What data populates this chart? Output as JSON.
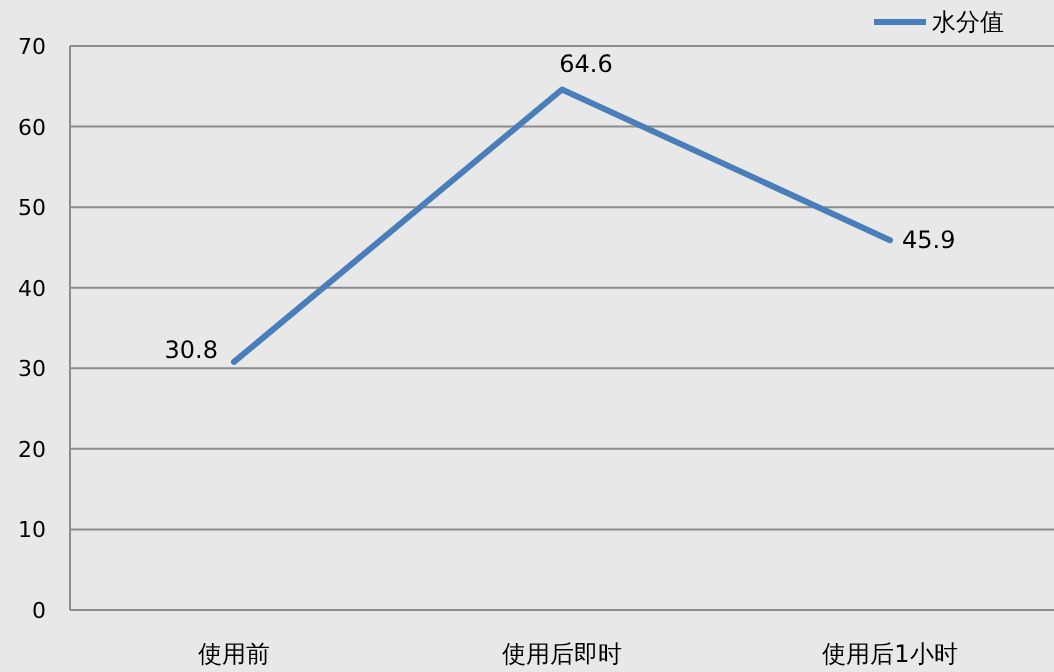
{
  "chart_data": {
    "type": "line",
    "categories": [
      "使用前",
      "使用后即时",
      "使用后1小时"
    ],
    "series": [
      {
        "name": "水分值",
        "color": "#4a7ebb",
        "values": [
          30.8,
          64.6,
          45.9
        ]
      }
    ],
    "ylim": [
      0,
      70
    ],
    "yticks": [
      0,
      10,
      20,
      30,
      40,
      50,
      60,
      70
    ],
    "grid": "y",
    "legend": "top right",
    "data_labels": true,
    "marker": "none",
    "line_style": "solid"
  }
}
